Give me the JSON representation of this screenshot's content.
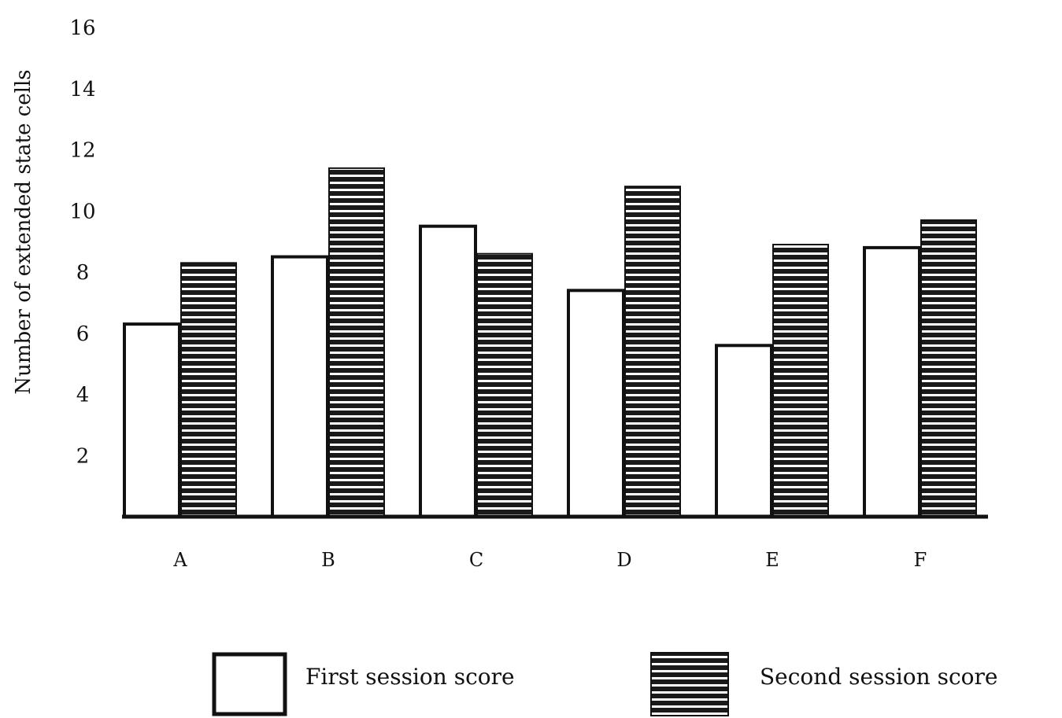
{
  "chart_data": {
    "type": "bar",
    "title": "",
    "xlabel": "",
    "ylabel": "Number of extended state cells",
    "categories": [
      "A",
      "B",
      "C",
      "D",
      "E",
      "F"
    ],
    "series": [
      {
        "name": "First session score",
        "values": [
          6.3,
          8.5,
          9.5,
          7.4,
          5.6,
          8.8
        ]
      },
      {
        "name": "Second session score",
        "values": [
          8.3,
          11.4,
          8.6,
          10.8,
          8.9,
          9.7
        ]
      }
    ],
    "yticks": [
      2,
      4,
      6,
      8,
      10,
      12,
      14,
      16
    ],
    "ylim": [
      0,
      16
    ],
    "grid": false,
    "legend_position": "bottom",
    "colors": {
      "first": "#ffffff",
      "second": "#1a1a1a",
      "stroke": "#111111"
    }
  }
}
